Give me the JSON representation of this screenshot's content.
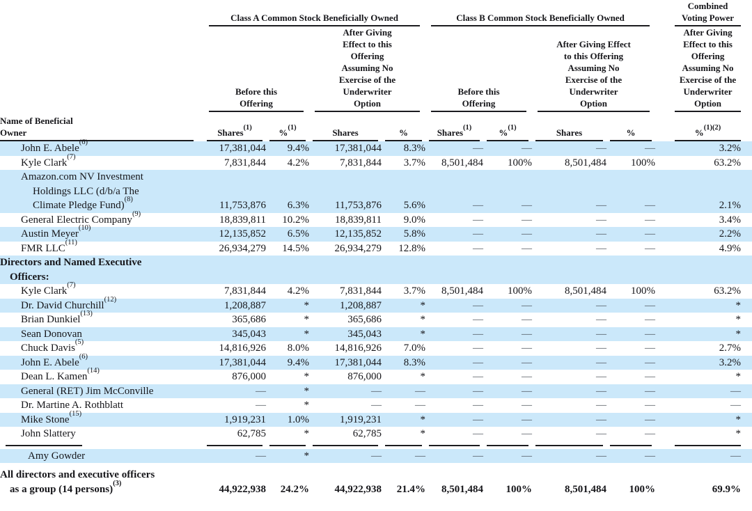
{
  "table": {
    "groups": {
      "class_a": "Class A Common Stock Beneficially Owned",
      "class_b": "Class B Common Stock Beneficially Owned",
      "combined": "Combined Voting Power"
    },
    "subheaders": {
      "before": "Before this Offering",
      "after": "After Giving Effect to this Offering Assuming No Exercise of the Underwriter Option"
    },
    "name_header": "Name of Beneficial Owner",
    "columns": [
      {
        "label": "Shares",
        "fn": "(1)"
      },
      {
        "label": "%",
        "fn": "(1)"
      },
      {
        "label": "Shares",
        "fn": ""
      },
      {
        "label": "%",
        "fn": ""
      },
      {
        "label": "Shares",
        "fn": "(1)"
      },
      {
        "label": "%",
        "fn": "(1)"
      },
      {
        "label": "Shares",
        "fn": ""
      },
      {
        "label": "%",
        "fn": ""
      },
      {
        "label": "%",
        "fn": "(1)(2)"
      }
    ],
    "rows": [
      {
        "style": "entity",
        "shade": true,
        "lines": [
          [
            "John E. Abele",
            2
          ]
        ],
        "fn": "(6)",
        "cells": [
          "17,381,044",
          "9.4%",
          "17,381,044",
          "8.3%",
          "—",
          "—",
          "—",
          "—",
          "3.2%"
        ]
      },
      {
        "style": "entity",
        "shade": false,
        "lines": [
          [
            "Kyle Clark",
            2
          ]
        ],
        "fn": "(7)",
        "cells": [
          "7,831,844",
          "4.2%",
          "7,831,844",
          "3.7%",
          "8,501,484",
          "100%",
          "8,501,484",
          "100%",
          "63.2%"
        ]
      },
      {
        "style": "entity",
        "shade": true,
        "lines": [
          [
            "Amazon.com NV Investment",
            2
          ],
          [
            "Holdings LLC (d/b/a The",
            3
          ],
          [
            "Climate Pledge Fund)",
            3
          ]
        ],
        "fn": "(8)",
        "cells": [
          "11,753,876",
          "6.3%",
          "11,753,876",
          "5.6%",
          "—",
          "—",
          "—",
          "—",
          "2.1%"
        ]
      },
      {
        "style": "entity",
        "shade": false,
        "lines": [
          [
            "General Electric Company",
            2
          ]
        ],
        "fn": "(9)",
        "cells": [
          "18,839,811",
          "10.2%",
          "18,839,811",
          "9.0%",
          "—",
          "—",
          "—",
          "—",
          "3.4%"
        ]
      },
      {
        "style": "entity",
        "shade": true,
        "lines": [
          [
            "Austin Meyer",
            2
          ]
        ],
        "fn": "(10)",
        "cells": [
          "12,135,852",
          "6.5%",
          "12,135,852",
          "5.8%",
          "—",
          "—",
          "—",
          "—",
          "2.2%"
        ]
      },
      {
        "style": "entity",
        "shade": false,
        "lines": [
          [
            "FMR LLC",
            2
          ]
        ],
        "fn": "(11)",
        "cells": [
          "26,934,279",
          "14.5%",
          "26,934,279",
          "12.8%",
          "—",
          "—",
          "—",
          "—",
          "4.9%"
        ]
      },
      {
        "style": "section",
        "shade": true,
        "lines": [
          [
            "Directors and Named Executive",
            0
          ],
          [
            "Officers:",
            1
          ]
        ],
        "fn": "",
        "cells": [
          "",
          "",
          "",
          "",
          "",
          "",
          "",
          "",
          ""
        ]
      },
      {
        "style": "entity",
        "shade": false,
        "lines": [
          [
            "Kyle Clark",
            2
          ]
        ],
        "fn": "(7)",
        "cells": [
          "7,831,844",
          "4.2%",
          "7,831,844",
          "3.7%",
          "8,501,484",
          "100%",
          "8,501,484",
          "100%",
          "63.2%"
        ]
      },
      {
        "style": "entity",
        "shade": true,
        "lines": [
          [
            "Dr. David Churchill",
            2
          ]
        ],
        "fn": "(12)",
        "cells": [
          "1,208,887",
          "*",
          "1,208,887",
          "*",
          "—",
          "—",
          "—",
          "—",
          "*"
        ]
      },
      {
        "style": "entity",
        "shade": false,
        "lines": [
          [
            "Brian Dunkiel",
            2
          ]
        ],
        "fn": "(13)",
        "cells": [
          "365,686",
          "*",
          "365,686",
          "*",
          "—",
          "—",
          "—",
          "—",
          "*"
        ]
      },
      {
        "style": "entity",
        "shade": true,
        "lines": [
          [
            "Sean Donovan",
            2
          ]
        ],
        "fn": "",
        "cells": [
          "345,043",
          "*",
          "345,043",
          "*",
          "—",
          "—",
          "—",
          "—",
          "*"
        ]
      },
      {
        "style": "entity",
        "shade": false,
        "lines": [
          [
            "Chuck Davis",
            2
          ]
        ],
        "fn": "(5)",
        "cells": [
          "14,816,926",
          "8.0%",
          "14,816,926",
          "7.0%",
          "—",
          "—",
          "—",
          "—",
          "2.7%"
        ]
      },
      {
        "style": "entity",
        "shade": true,
        "lines": [
          [
            "John E. Abele",
            2
          ]
        ],
        "fn": "(6)",
        "cells": [
          "17,381,044",
          "9.4%",
          "17,381,044",
          "8.3%",
          "—",
          "—",
          "—",
          "—",
          "3.2%"
        ]
      },
      {
        "style": "entity",
        "shade": false,
        "lines": [
          [
            "Dean L. Kamen",
            2
          ]
        ],
        "fn": "(14)",
        "cells": [
          "876,000",
          "*",
          "876,000",
          "*",
          "—",
          "—",
          "—",
          "—",
          "*"
        ]
      },
      {
        "style": "entity",
        "shade": true,
        "lines": [
          [
            "General (RET) Jim McConville",
            2
          ]
        ],
        "fn": "",
        "cells": [
          "—",
          "*",
          "—",
          "—",
          "—",
          "—",
          "—",
          "—",
          "—"
        ]
      },
      {
        "style": "entity",
        "shade": false,
        "lines": [
          [
            "Dr. Martine A. Rothblatt",
            2
          ]
        ],
        "fn": "",
        "cells": [
          "—",
          "*",
          "—",
          "—",
          "—",
          "—",
          "—",
          "—",
          "—"
        ]
      },
      {
        "style": "entity",
        "shade": true,
        "lines": [
          [
            "Mike Stone",
            2
          ]
        ],
        "fn": "(15)",
        "cells": [
          "1,919,231",
          "1.0%",
          "1,919,231",
          "*",
          "—",
          "—",
          "—",
          "—",
          "*"
        ]
      },
      {
        "style": "entity",
        "shade": false,
        "lines": [
          [
            "John Slattery",
            2
          ]
        ],
        "fn": "",
        "cells": [
          "62,785",
          "*",
          "62,785",
          "*",
          "—",
          "—",
          "—",
          "—",
          "*"
        ]
      },
      {
        "style": "rule",
        "shade": false,
        "lines": [],
        "fn": "",
        "cells": [
          "",
          "",
          "",
          "",
          "",
          "",
          "",
          "",
          ""
        ]
      },
      {
        "style": "entity",
        "shade": true,
        "lines": [
          [
            "Amy Gowder",
            4
          ]
        ],
        "fn": "",
        "cells": [
          "—",
          "*",
          "—",
          "—",
          "—",
          "—",
          "—",
          "—",
          "—"
        ]
      },
      {
        "style": "total",
        "shade": false,
        "lines": [
          [
            "All directors and executive officers",
            0
          ],
          [
            "as a group (14 persons)",
            1
          ]
        ],
        "fn": "(3)",
        "cells": [
          "44,922,938",
          "24.2%",
          "44,922,938",
          "21.4%",
          "8,501,484",
          "100%",
          "8,501,484",
          "100%",
          "69.9%"
        ]
      }
    ]
  },
  "colors": {
    "stripe_blue": "#cbe8fa",
    "text": "#16161a",
    "dash_gray": "#50565e"
  }
}
